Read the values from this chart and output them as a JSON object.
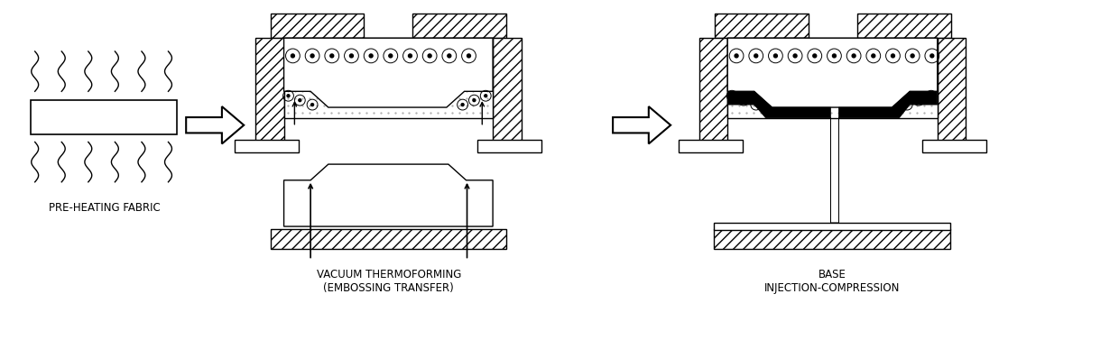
{
  "bg_color": "#ffffff",
  "line_color": "#000000",
  "label1": "PRE-HEATING FABRIC",
  "label2": "VACUUM THERMOFORMING\n(EMBOSSING TRANSFER)",
  "label3": "BASE\nINJECTION-COMPRESSION",
  "font_size_label": 8.5,
  "fig_width": 12.4,
  "fig_height": 3.77
}
